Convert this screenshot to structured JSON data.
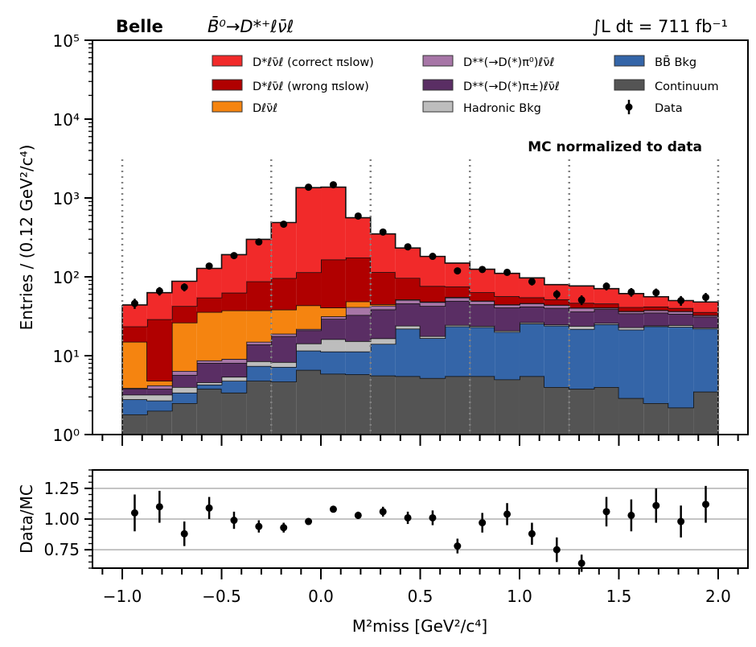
{
  "chart_data": [
    {
      "type": "bar",
      "subtype": "stacked-histogram-with-data-points",
      "title": "",
      "header": {
        "experiment": "Belle",
        "decay": "B̄⁰→D*⁺ℓν̄ℓ",
        "luminosity": "∫L dt = 711 fb⁻¹",
        "annotation": "MC normalized to data"
      },
      "xlabel": "M²miss [GeV²/c⁴]",
      "ylabel": "Entries / (0.12 GeV²/c⁴)",
      "yscale": "log",
      "xlim": [
        -1.15,
        2.15
      ],
      "ylim": [
        1,
        100000
      ],
      "x_ticks": [
        "−1.0",
        "−0.5",
        "0.0",
        "0.5",
        "1.0",
        "1.5",
        "2.0"
      ],
      "x_tick_values": [
        -1.0,
        -0.5,
        0.0,
        0.5,
        1.0,
        1.5,
        2.0
      ],
      "y_ticks": [
        "10⁰",
        "10¹",
        "10²",
        "10³",
        "10⁴",
        "10⁵"
      ],
      "y_tick_values": [
        1,
        10,
        100,
        1000,
        10000,
        100000
      ],
      "bin_edges": [
        -1.0,
        -0.875,
        -0.75,
        -0.625,
        -0.5,
        -0.375,
        -0.25,
        -0.125,
        0.0,
        0.125,
        0.25,
        0.375,
        0.5,
        0.625,
        0.75,
        0.875,
        1.0,
        1.125,
        1.25,
        1.375,
        1.5,
        1.625,
        1.75,
        1.875,
        2.0
      ],
      "dotted_vlines": [
        -1.0,
        -0.25,
        0.25,
        0.75,
        1.25,
        2.0
      ],
      "legend_position": "top (3 columns inside axes)",
      "series": [
        {
          "name": "Continuum",
          "color": "#545454",
          "values": [
            1.8,
            2.0,
            2.5,
            3.8,
            3.4,
            4.8,
            4.7,
            6.6,
            5.9,
            5.8,
            5.6,
            5.5,
            5.2,
            5.5,
            5.5,
            5.0,
            5.5,
            4.0,
            3.8,
            4.0,
            2.9,
            2.5,
            2.2,
            3.5
          ]
        },
        {
          "name": "BB̄ Bkg",
          "color": "#3465a8",
          "values": [
            1.0,
            0.7,
            0.9,
            0.5,
            1.4,
            2.6,
            2.5,
            5.0,
            5.4,
            5.5,
            8.5,
            16.5,
            11.5,
            18.0,
            17.5,
            15.0,
            20.0,
            20.0,
            18.0,
            21.0,
            18.5,
            21.0,
            21.0,
            18.5
          ]
        },
        {
          "name": "Hadronic Bkg",
          "color": "#bdbdbd",
          "values": [
            0.4,
            0.5,
            0.6,
            0.3,
            0.6,
            1.1,
            1.1,
            2.7,
            4.9,
            4.0,
            2.5,
            2.0,
            1.0,
            1.0,
            0.8,
            0.8,
            1.0,
            0.8,
            2.0,
            0.9,
            1.5,
            0.6,
            1.2,
            0.7
          ]
        },
        {
          "name": "D**(→D(*)π±)ℓν̄ℓ",
          "color": "#5a2e64",
          "values": [
            0.6,
            0.6,
            1.7,
            3.5,
            2.7,
            5.4,
            9.4,
            6.7,
            13.1,
            17.5,
            22.0,
            22.0,
            25.0,
            25.0,
            21.0,
            20.0,
            15.5,
            15.5,
            12.5,
            13.0,
            11.5,
            11.0,
            9.5,
            8.5
          ]
        },
        {
          "name": "D**(→D(*)π⁰)ℓν̄ℓ",
          "color": "#a776a7",
          "values": [
            0.1,
            0.4,
            0.7,
            0.6,
            1.0,
            1.1,
            1.3,
            0.8,
            2.2,
            8.5,
            4.5,
            5.0,
            5.0,
            5.0,
            4.5,
            3.5,
            4.0,
            3.5,
            4.0,
            1.5,
            2.0,
            2.5,
            2.5,
            1.3
          ]
        },
        {
          "name": "Dℓν̄ℓ",
          "color": "#f58410",
          "values": [
            11.1,
            0.6,
            19.9,
            27.1,
            28.4,
            22.5,
            19.4,
            21.7,
            9.3,
            7.4,
            1.8,
            0.8,
            0.8,
            0.8,
            0.5,
            0.4,
            0.4,
            0.4,
            0.4,
            0.4,
            0.4,
            0.3,
            0.3,
            0.2
          ]
        },
        {
          "name": "D*ℓν̄ℓ (wrong πslow)",
          "color": "#b00000",
          "values": [
            8.5,
            24.2,
            16.3,
            18.8,
            25.5,
            50.1,
            58.0,
            70.8,
            125.0,
            127.0,
            70.0,
            45.0,
            28.0,
            20.0,
            14.0,
            12.0,
            8.5,
            7.5,
            6.0,
            5.0,
            4.5,
            4.0,
            3.5,
            3.0
          ]
        },
        {
          "name": "D*ℓν̄ℓ (correct πslow)",
          "color": "#f12a2a",
          "values": [
            20.5,
            34.0,
            45.3,
            73.4,
            128.0,
            211.0,
            392.0,
            1236.0,
            1205.0,
            386.0,
            235.0,
            135.0,
            105.0,
            74.0,
            61.0,
            54.0,
            42.0,
            28.0,
            30.0,
            25.0,
            20.0,
            14.0,
            9.8,
            12.3
          ]
        }
      ],
      "data_points": {
        "name": "Data",
        "color": "#000000",
        "x": [
          -0.9375,
          -0.8125,
          -0.6875,
          -0.5625,
          -0.4375,
          -0.3125,
          -0.1875,
          -0.0625,
          0.0625,
          0.1875,
          0.3125,
          0.4375,
          0.5625,
          0.6875,
          0.8125,
          0.9375,
          1.0625,
          1.1875,
          1.3125,
          1.4375,
          1.5625,
          1.6875,
          1.8125,
          1.9375
        ],
        "y": [
          46,
          66,
          74,
          137,
          186,
          277,
          465,
          1371,
          1470,
          590,
          370,
          240,
          182,
          119,
          124,
          114,
          87,
          60,
          51,
          76,
          64,
          63,
          50,
          55
        ]
      },
      "legend": [
        {
          "label": "D*ℓν̄ℓ (correct πslow)",
          "kind": "patch",
          "color": "#f12a2a"
        },
        {
          "label": "D*ℓν̄ℓ (wrong πslow)",
          "kind": "patch",
          "color": "#b00000"
        },
        {
          "label": "Dℓν̄ℓ",
          "kind": "patch",
          "color": "#f58410"
        },
        {
          "label": "D**(→D(*)π⁰)ℓν̄ℓ",
          "kind": "patch",
          "color": "#a776a7"
        },
        {
          "label": "D**(→D(*)π±)ℓν̄ℓ",
          "kind": "patch",
          "color": "#5a2e64"
        },
        {
          "label": "Hadronic Bkg",
          "kind": "patch",
          "color": "#bdbdbd"
        },
        {
          "label": "BB̄ Bkg",
          "kind": "patch",
          "color": "#3465a8"
        },
        {
          "label": "Continuum",
          "kind": "patch",
          "color": "#545454"
        },
        {
          "label": "Data",
          "kind": "errorbar",
          "color": "#000000"
        }
      ]
    },
    {
      "type": "scatter",
      "subtype": "ratio-with-errorbars",
      "xlabel": "M²miss [GeV²/c⁴]",
      "ylabel": "Data/MC",
      "xlim": [
        -1.15,
        2.15
      ],
      "ylim": [
        0.6,
        1.4
      ],
      "x_ticks": [
        "−1.0",
        "−0.5",
        "0.0",
        "0.5",
        "1.0",
        "1.5",
        "2.0"
      ],
      "x_tick_values": [
        -1.0,
        -0.5,
        0.0,
        0.5,
        1.0,
        1.5,
        2.0
      ],
      "y_ticks": [
        "0.75",
        "1.00",
        "1.25"
      ],
      "y_tick_values": [
        0.75,
        1.0,
        1.25
      ],
      "grid": "horizontal at y ticks",
      "x": [
        -0.9375,
        -0.8125,
        -0.6875,
        -0.5625,
        -0.4375,
        -0.3125,
        -0.1875,
        -0.0625,
        0.0625,
        0.1875,
        0.3125,
        0.4375,
        0.5625,
        0.6875,
        0.8125,
        0.9375,
        1.0625,
        1.1875,
        1.3125,
        1.4375,
        1.5625,
        1.6875,
        1.8125,
        1.9375
      ],
      "y": [
        1.05,
        1.1,
        0.88,
        1.09,
        0.99,
        0.94,
        0.93,
        0.98,
        1.08,
        1.03,
        1.06,
        1.01,
        1.01,
        0.78,
        0.97,
        1.04,
        0.88,
        0.75,
        0.64,
        1.06,
        1.03,
        1.11,
        0.98,
        1.12
      ],
      "yerr": [
        0.15,
        0.13,
        0.1,
        0.09,
        0.07,
        0.05,
        0.04,
        0.02,
        0.02,
        0.03,
        0.04,
        0.05,
        0.06,
        0.06,
        0.08,
        0.09,
        0.09,
        0.1,
        0.07,
        0.12,
        0.13,
        0.14,
        0.13,
        0.15
      ]
    }
  ]
}
